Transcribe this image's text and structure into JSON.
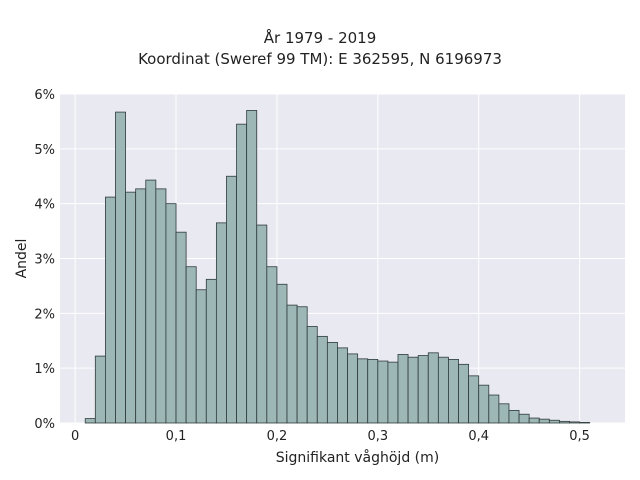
{
  "chart_data": {
    "type": "bar",
    "title": "År 1979 - 2019",
    "subtitle": "Koordinat (Sweref 99 TM): E 362595, N 6196973",
    "xlabel": "Signifikant våghöjd (m)",
    "ylabel": "Andel",
    "xlim": [
      -0.015,
      0.545
    ],
    "ylim": [
      0,
      6
    ],
    "grid": true,
    "x_ticks": [
      {
        "value": 0,
        "label": "0"
      },
      {
        "value": 0.1,
        "label": "0,1"
      },
      {
        "value": 0.2,
        "label": "0,2"
      },
      {
        "value": 0.3,
        "label": "0,3"
      },
      {
        "value": 0.4,
        "label": "0,4"
      },
      {
        "value": 0.5,
        "label": "0,5"
      }
    ],
    "y_ticks": [
      {
        "value": 0,
        "label": "0%"
      },
      {
        "value": 1,
        "label": "1%"
      },
      {
        "value": 2,
        "label": "2%"
      },
      {
        "value": 3,
        "label": "3%"
      },
      {
        "value": 4,
        "label": "4%"
      },
      {
        "value": 5,
        "label": "5%"
      },
      {
        "value": 6,
        "label": "6%"
      }
    ],
    "bin_width": 0.01,
    "bin_start": 0.01,
    "values": [
      0.08,
      1.22,
      4.12,
      5.67,
      4.21,
      4.27,
      4.43,
      4.27,
      4.0,
      3.48,
      2.85,
      2.43,
      2.62,
      3.65,
      4.5,
      5.45,
      5.7,
      3.61,
      2.85,
      2.53,
      2.15,
      2.12,
      1.76,
      1.58,
      1.47,
      1.37,
      1.26,
      1.17,
      1.16,
      1.13,
      1.11,
      1.25,
      1.2,
      1.23,
      1.28,
      1.2,
      1.16,
      1.07,
      0.86,
      0.69,
      0.51,
      0.35,
      0.23,
      0.16,
      0.09,
      0.07,
      0.05,
      0.03,
      0.02,
      0.01
    ],
    "colors": {
      "bar_fill": "#9db6b6",
      "bar_stroke": "#2e3b3b",
      "plot_bg": "#e9e9f1",
      "grid": "#ffffff"
    }
  }
}
